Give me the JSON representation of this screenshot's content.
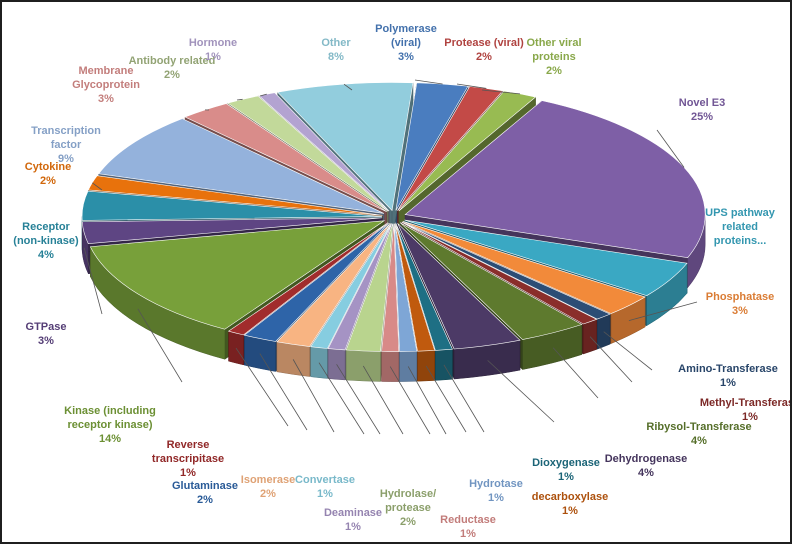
{
  "chart_data": {
    "type": "pie",
    "style": "3d-exploded",
    "title": "",
    "legend": "none",
    "slices": [
      {
        "label": "Polymerase (viral)",
        "pct_label": "3%",
        "value": 3,
        "color": "#4a7dbf"
      },
      {
        "label": "Protease (viral)",
        "pct_label": "2%",
        "value": 2,
        "color": "#c34a47"
      },
      {
        "label": "Other viral proteins",
        "pct_label": "2%",
        "value": 2,
        "color": "#98bb52"
      },
      {
        "label": "Novel E3",
        "pct_label": "25%",
        "value": 25,
        "color": "#7e5fa6"
      },
      {
        "label": "UPS pathway related proteins...",
        "pct_label": "",
        "value": 5,
        "color": "#3aa8c3"
      },
      {
        "label": "Phosphatase",
        "pct_label": "3%",
        "value": 3,
        "color": "#f28a3a"
      },
      {
        "label": "Amino-Transferase",
        "pct_label": "1%",
        "value": 1,
        "color": "#2c4d75"
      },
      {
        "label": "Methyl-Transferase",
        "pct_label": "1%",
        "value": 1,
        "color": "#8a2e2b"
      },
      {
        "label": "Ribysol-Transferase",
        "pct_label": "4%",
        "value": 4,
        "color": "#5e7a2e"
      },
      {
        "label": "Dehydrogenase",
        "pct_label": "4%",
        "value": 4,
        "color": "#4c3a66"
      },
      {
        "label": "Dioxygenase",
        "pct_label": "1%",
        "value": 1,
        "color": "#1e6f84"
      },
      {
        "label": "decarboxylase",
        "pct_label": "1%",
        "value": 1,
        "color": "#c05a0e"
      },
      {
        "label": "Hydrotase",
        "pct_label": "1%",
        "value": 1,
        "color": "#7ea6d6"
      },
      {
        "label": "Reductase",
        "pct_label": "1%",
        "value": 1,
        "color": "#d88a88"
      },
      {
        "label": "Hydrolase/ protease",
        "pct_label": "2%",
        "value": 2,
        "color": "#b9d48e"
      },
      {
        "label": "Deaminase",
        "pct_label": "1%",
        "value": 1,
        "color": "#a593c4"
      },
      {
        "label": "Convertase",
        "pct_label": "1%",
        "value": 1,
        "color": "#86cde0"
      },
      {
        "label": "Isomerase",
        "pct_label": "2%",
        "value": 2,
        "color": "#f8b482"
      },
      {
        "label": "Glutaminase",
        "pct_label": "2%",
        "value": 2,
        "color": "#2e64a8"
      },
      {
        "label": "Reverse transcripitase",
        "pct_label": "1%",
        "value": 1,
        "color": "#a12c2c"
      },
      {
        "label": "Kinase (including receptor kinase)",
        "pct_label": "14%",
        "value": 14,
        "color": "#78a03a"
      },
      {
        "label": "GTPase",
        "pct_label": "3%",
        "value": 3,
        "color": "#5e4583"
      },
      {
        "label": "Receptor (non-kinase)",
        "pct_label": "4%",
        "value": 4,
        "color": "#2b8fa8"
      },
      {
        "label": "Cytokine",
        "pct_label": "2%",
        "value": 2,
        "color": "#e8720c"
      },
      {
        "label": "Transcription factor",
        "pct_label": "9%",
        "value": 9,
        "color": "#94b2dc"
      },
      {
        "label": "Membrane Glycoprotein",
        "pct_label": "3%",
        "value": 3,
        "color": "#d98c8a"
      },
      {
        "label": "Antibody related",
        "pct_label": "2%",
        "value": 2,
        "color": "#c2d99a"
      },
      {
        "label": "Hormone",
        "pct_label": "1%",
        "value": 1,
        "color": "#b3a3d1"
      },
      {
        "label": "Other",
        "pct_label": "8%",
        "value": 8,
        "color": "#92cddd"
      }
    ]
  }
}
